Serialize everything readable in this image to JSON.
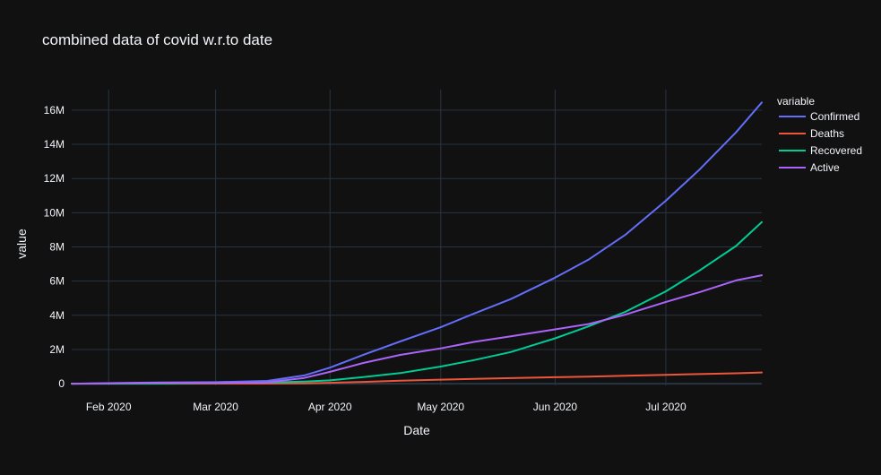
{
  "chart_data": {
    "type": "line",
    "title": "combined data of covid w.r.to date",
    "xlabel": "Date",
    "ylabel": "value",
    "x_ticks": [
      "Feb 2020",
      "Mar 2020",
      "Apr 2020",
      "May 2020",
      "Jun 2020",
      "Jul 2020"
    ],
    "x_tick_dates": [
      "2020-02-01",
      "2020-03-01",
      "2020-04-01",
      "2020-05-01",
      "2020-06-01",
      "2020-07-01"
    ],
    "xlim": [
      "2020-01-22",
      "2020-07-27"
    ],
    "y_ticks": [
      0,
      2000000,
      4000000,
      6000000,
      8000000,
      10000000,
      12000000,
      14000000,
      16000000
    ],
    "y_tick_labels": [
      "0",
      "2M",
      "4M",
      "6M",
      "8M",
      "10M",
      "12M",
      "14M",
      "16M"
    ],
    "ylim": [
      -100000,
      17200000
    ],
    "grid": true,
    "legend": {
      "title": "variable",
      "placement": "top-right"
    },
    "x": [
      "2020-01-22",
      "2020-02-15",
      "2020-03-01",
      "2020-03-15",
      "2020-03-25",
      "2020-04-01",
      "2020-04-10",
      "2020-04-20",
      "2020-05-01",
      "2020-05-10",
      "2020-05-20",
      "2020-06-01",
      "2020-06-10",
      "2020-06-20",
      "2020-07-01",
      "2020-07-10",
      "2020-07-20",
      "2020-07-27"
    ],
    "series": [
      {
        "name": "Confirmed",
        "color": "#636efa",
        "values": [
          555,
          71000,
          88000,
          160000,
          480000,
          940000,
          1690000,
          2470000,
          3300000,
          4100000,
          4950000,
          6200000,
          7250000,
          8700000,
          10700000,
          12500000,
          14700000,
          16450000
        ]
      },
      {
        "name": "Deaths",
        "color": "#ef553b",
        "values": [
          17,
          1700,
          3000,
          6500,
          22000,
          51000,
          102000,
          170000,
          235000,
          280000,
          325000,
          375000,
          415000,
          465000,
          520000,
          560000,
          610000,
          655000
        ]
      },
      {
        "name": "Recovered",
        "color": "#00cc96",
        "values": [
          28,
          11000,
          43000,
          74000,
          125000,
          195000,
          380000,
          620000,
          1000000,
          1380000,
          1850000,
          2650000,
          3350000,
          4200000,
          5400000,
          6600000,
          8050000,
          9450000
        ]
      },
      {
        "name": "Active",
        "color": "#ab63fa",
        "values": [
          510,
          58000,
          42000,
          80000,
          333000,
          694000,
          1208000,
          1680000,
          2065000,
          2440000,
          2775000,
          3175000,
          3485000,
          4035000,
          4780000,
          5340000,
          6040000,
          6345000
        ]
      }
    ]
  }
}
